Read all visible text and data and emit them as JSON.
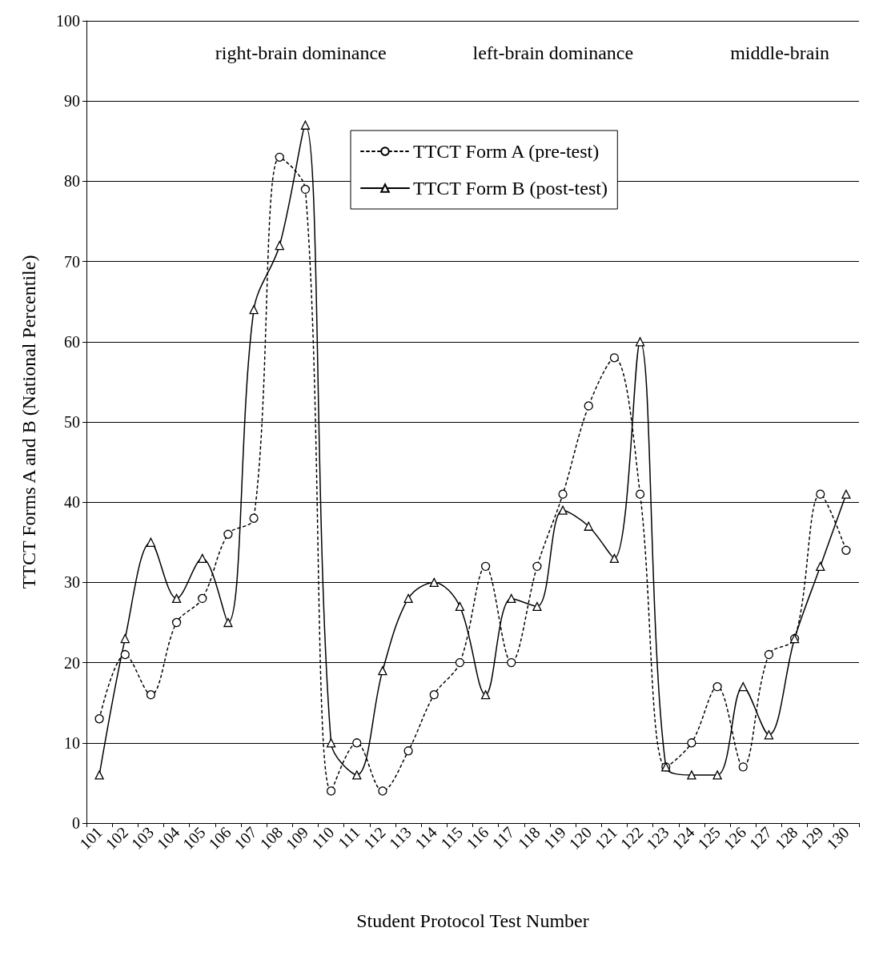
{
  "chart_data": {
    "type": "line",
    "xlabel": "Student Protocol Test Number",
    "ylabel": "TTCT Forms A and B (National Percentile)",
    "categories": [
      "101",
      "102",
      "103",
      "104",
      "105",
      "106",
      "107",
      "108",
      "109",
      "110",
      "111",
      "112",
      "113",
      "114",
      "115",
      "116",
      "117",
      "118",
      "119",
      "120",
      "121",
      "122",
      "123",
      "124",
      "125",
      "126",
      "127",
      "128",
      "129",
      "130"
    ],
    "series": [
      {
        "name": "TTCT Form A (pre-test)",
        "color": "#000000",
        "marker": "circle",
        "line_style": "dotted",
        "values": [
          13,
          21,
          16,
          25,
          28,
          36,
          38,
          83,
          79,
          4,
          10,
          4,
          9,
          16,
          20,
          32,
          20,
          32,
          41,
          52,
          58,
          41,
          7,
          10,
          17,
          7,
          21,
          23,
          41,
          34
        ]
      },
      {
        "name": "TTCT Form B (post-test)",
        "color": "#000000",
        "marker": "triangle",
        "line_style": "solid",
        "values": [
          6,
          23,
          35,
          28,
          33,
          25,
          64,
          72,
          87,
          10,
          6,
          19,
          28,
          30,
          27,
          16,
          28,
          27,
          39,
          37,
          33,
          60,
          7,
          6,
          6,
          17,
          11,
          23,
          32,
          41
        ]
      }
    ],
    "ylim": [
      0,
      100
    ],
    "yticks": [
      0,
      10,
      20,
      30,
      40,
      50,
      60,
      70,
      80,
      90,
      100
    ],
    "grid": "y",
    "legend": "top",
    "annotations": [
      "right-brain dominance",
      "left-brain dominance",
      "middle-brain"
    ]
  }
}
